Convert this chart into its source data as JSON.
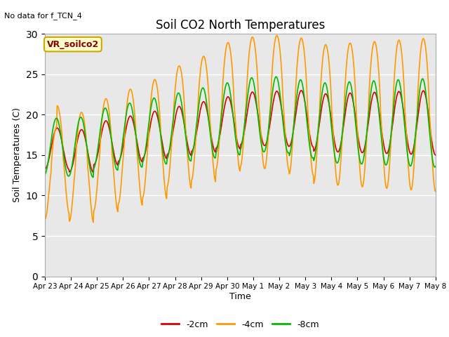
{
  "title": "Soil CO2 North Temperatures",
  "no_data_text": "No data for f_TCN_4",
  "legend_box_text": "VR_soilco2",
  "ylabel": "Soil Temperatures (C)",
  "xlabel": "Time",
  "ylim": [
    0,
    30
  ],
  "yticks": [
    0,
    5,
    10,
    15,
    20,
    25,
    30
  ],
  "xtick_labels": [
    "Apr 23",
    "Apr 24",
    "Apr 25",
    "Apr 26",
    "Apr 27",
    "Apr 28",
    "Apr 29",
    "Apr 30",
    "May 1",
    "May 2",
    "May 3",
    "May 4",
    "May 5",
    "May 6",
    "May 7",
    "May 8"
  ],
  "line_colors": {
    "m2cm": "#dd0000",
    "m4cm": "#ff9900",
    "m8cm": "#00bb00"
  },
  "legend_entries": [
    "-2cm",
    "-4cm",
    "-8cm"
  ],
  "background_color": "#e8e8e8",
  "fig_background": "#ffffff",
  "linewidth": 1.2
}
